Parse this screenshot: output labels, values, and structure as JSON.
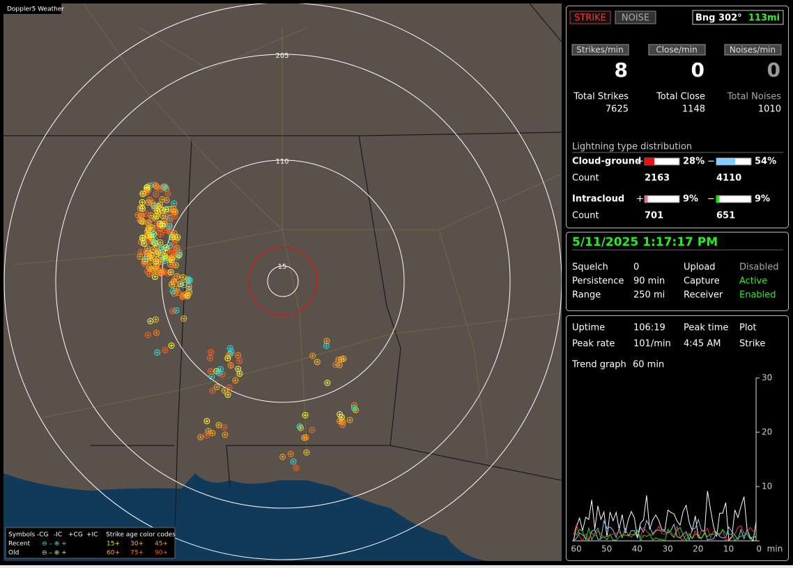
{
  "map": {
    "title": "Doppler5 Weather",
    "ring_labels": [
      "205",
      "110",
      "15"
    ],
    "legend": {
      "symbols": "Symbols",
      "cols": [
        "-CG",
        "-IC",
        "+CG",
        "+IC"
      ],
      "age_title": "Strike age color codes",
      "recent": "Recent",
      "old": "Old",
      "recent_ages": [
        "15+",
        "30+",
        "45+"
      ],
      "old_ages": [
        "60+",
        "75+",
        "90+"
      ]
    }
  },
  "status": {
    "strike": "STRIKE",
    "noise": "NOISE",
    "bearing": "Bng 302°",
    "distance": "113mi"
  },
  "rates": [
    {
      "label": "Strikes/min",
      "value": 8,
      "total_label": "Total Strikes",
      "total": 7625
    },
    {
      "label": "Close/min",
      "value": 0,
      "total_label": "Total Close",
      "total": 1148
    },
    {
      "label": "Noises/min",
      "value": 0,
      "total_label": "Total Noises",
      "total": 1010
    }
  ],
  "distribution": {
    "title": "Lightning type distribution",
    "cloud_ground": {
      "label": "Cloud-ground",
      "plus": "+",
      "plus_pct": "28%",
      "minus": "−",
      "minus_pct": "54%",
      "count_label": "Count",
      "plus_count": 2163,
      "minus_count": 4110
    },
    "intracloud": {
      "label": "Intracloud",
      "plus": "+",
      "plus_pct": "9%",
      "minus": "−",
      "minus_pct": "9%",
      "count_label": "Count",
      "plus_count": 701,
      "minus_count": 651
    }
  },
  "settings": {
    "datetime": "5/11/2025 1:17:17 PM",
    "rows": [
      [
        "Squelch",
        "0",
        "Upload",
        "Disabled"
      ],
      [
        "Persistence",
        "90 min",
        "Capture",
        "Active"
      ],
      [
        "Range",
        "250 mi",
        "Receiver",
        "Enabled"
      ]
    ]
  },
  "stats": {
    "rows": [
      [
        "Uptime",
        "106:19",
        "Peak time",
        "Plot"
      ],
      [
        "Peak rate",
        "101/min",
        "4:45 AM",
        "Strike"
      ]
    ],
    "trend_label": "Trend graph",
    "trend_value": "60 min",
    "y_ticks": [
      "30",
      "20",
      "10"
    ],
    "x_ticks": [
      "60",
      "50",
      "40",
      "30",
      "20",
      "10",
      "0"
    ],
    "x_unit": "min"
  }
}
